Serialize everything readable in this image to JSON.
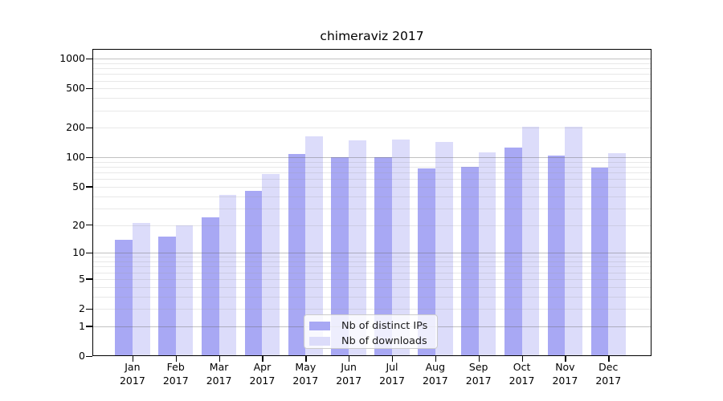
{
  "chart_data": {
    "type": "bar",
    "title": "chimeraviz 2017",
    "categories": [
      "Jan 2017",
      "Feb 2017",
      "Mar 2017",
      "Apr 2017",
      "May 2017",
      "Jun 2017",
      "Jul 2017",
      "Aug 2017",
      "Sep 2017",
      "Oct 2017",
      "Nov 2017",
      "Dec 2017"
    ],
    "series": [
      {
        "name": "Nb of distinct IPs",
        "color": "#a8a8f4",
        "values": [
          14,
          15,
          24,
          45,
          108,
          100,
          101,
          77,
          80,
          126,
          104,
          79
        ]
      },
      {
        "name": "Nb of downloads",
        "color": "#dcdcfa",
        "values": [
          21,
          20,
          41,
          68,
          165,
          148,
          153,
          144,
          112,
          206,
          206,
          111
        ]
      }
    ],
    "y_ticks": [
      0,
      1,
      2,
      5,
      10,
      20,
      50,
      100,
      200,
      500,
      1000
    ],
    "y_scale": "log(1+x)",
    "ylim": [
      0,
      1200
    ],
    "grid": "on",
    "legend_position": "lower center"
  }
}
